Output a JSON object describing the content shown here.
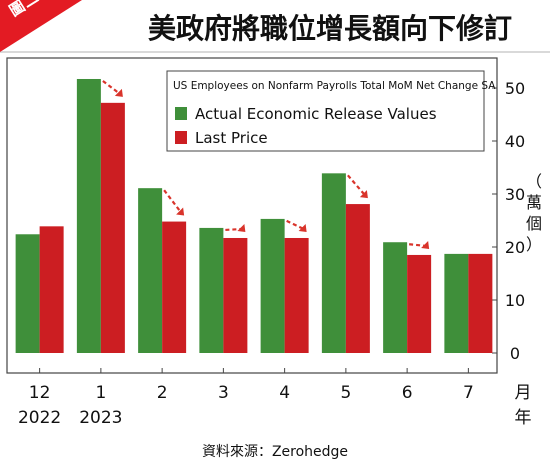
{
  "badge": "圖二",
  "title": "美政府將職位增長額向下修訂",
  "source": "資料來源：Zerohedge",
  "chart_data": {
    "type": "bar",
    "title": "美政府將職位增長額向下修訂",
    "legend_title": "US Employees on Nonfarm Payrolls Total MoM  Net Change SA",
    "legend_position": "top-right",
    "categories": [
      {
        "month": "12",
        "year": "2022"
      },
      {
        "month": "1",
        "year": "2023"
      },
      {
        "month": "2",
        "year": ""
      },
      {
        "month": "3",
        "year": ""
      },
      {
        "month": "4",
        "year": ""
      },
      {
        "month": "5",
        "year": ""
      },
      {
        "month": "6",
        "year": ""
      },
      {
        "month": "7",
        "year": ""
      }
    ],
    "series": [
      {
        "name": "Actual Economic Release Values",
        "color": "#3f8f3a",
        "values": [
          22.4,
          51.7,
          31.1,
          23.6,
          25.3,
          33.9,
          20.9,
          18.7
        ]
      },
      {
        "name": "Last Price",
        "color": "#cc1e22",
        "values": [
          23.9,
          47.2,
          24.8,
          21.7,
          21.7,
          28.1,
          18.5,
          18.7
        ]
      }
    ],
    "revision_arrows": [
      false,
      true,
      true,
      true,
      true,
      true,
      true,
      false
    ],
    "arrow_color": "#d9342b",
    "y_unit": "（萬個）",
    "x_unit": [
      "月",
      "年"
    ],
    "ylim": [
      0,
      57
    ],
    "yticks": [
      "0",
      "10",
      "20",
      "30",
      "40",
      "50"
    ],
    "grid": false
  }
}
